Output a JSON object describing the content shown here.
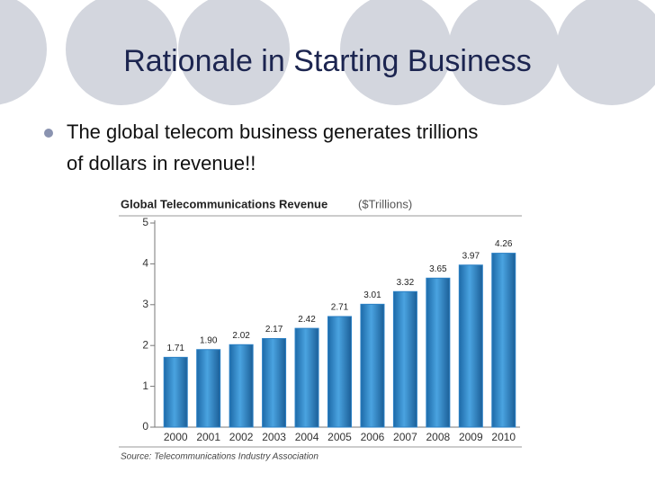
{
  "slide": {
    "title": "Rationale in Starting Business",
    "bullets": [
      "The global telecom business generates trillions",
      "of dollars in revenue!!"
    ]
  },
  "chart_data": {
    "type": "bar",
    "title": "Global Telecommunications Revenue",
    "subtitle": "($Trillions)",
    "source": "Source: Telecommunications Industry Association",
    "categories": [
      "2000",
      "2001",
      "2002",
      "2003",
      "2004",
      "2005",
      "2006",
      "2007",
      "2008",
      "2009",
      "2010"
    ],
    "values": [
      1.71,
      1.9,
      2.02,
      2.17,
      2.42,
      2.71,
      3.01,
      3.32,
      3.65,
      3.97,
      4.26
    ],
    "value_labels": [
      "1.71",
      "1.90",
      "2.02",
      "2.17",
      "2.42",
      "2.71",
      "3.01",
      "3.32",
      "3.65",
      "3.97",
      "4.26"
    ],
    "color": "#2b80c5",
    "ylim": [
      0,
      5
    ],
    "yticks": [
      0,
      1,
      2,
      3,
      4,
      5
    ]
  }
}
